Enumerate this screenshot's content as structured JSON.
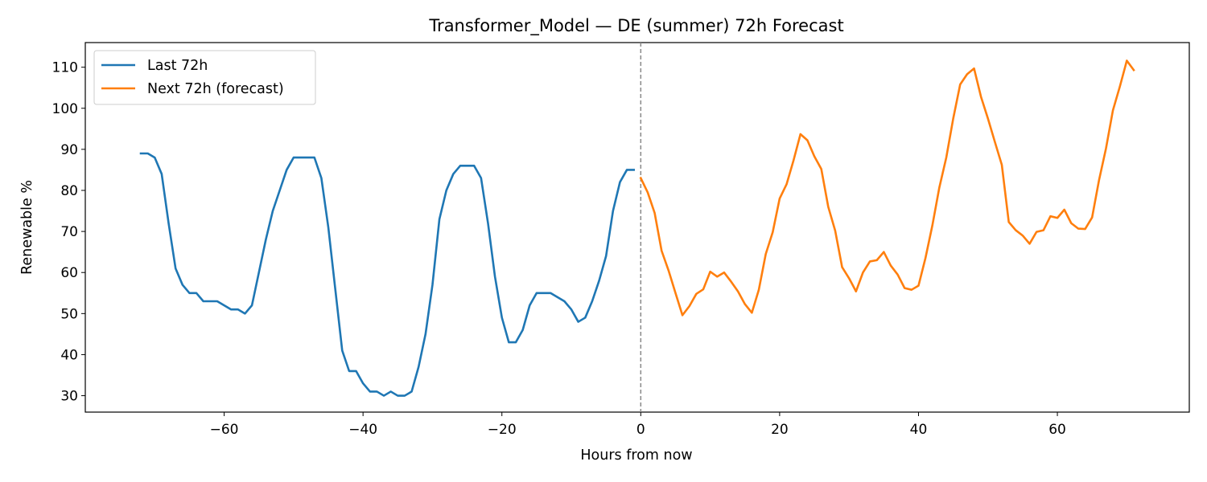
{
  "chart_data": {
    "type": "line",
    "title": "Transformer_Model — DE (summer) 72h Forecast",
    "xlabel": "Hours from now",
    "ylabel": "Renewable %",
    "xlim": [
      -80,
      79
    ],
    "ylim": [
      26,
      116
    ],
    "xticks": [
      -60,
      -40,
      -20,
      0,
      20,
      40,
      60
    ],
    "yticks": [
      30,
      40,
      50,
      60,
      70,
      80,
      90,
      100,
      110
    ],
    "x_tick_labels": [
      "−60",
      "−40",
      "−20",
      "0",
      "20",
      "40",
      "60"
    ],
    "y_tick_labels": [
      "30",
      "40",
      "50",
      "60",
      "70",
      "80",
      "90",
      "100",
      "110"
    ],
    "grid": false,
    "legend_position": "top-left",
    "reference_line": {
      "x": 0,
      "style": "dashed",
      "color": "#888888"
    },
    "series": [
      {
        "name": "Last 72h",
        "color": "#1f77b4",
        "x": [
          -72,
          -71,
          -70,
          -69,
          -68,
          -67,
          -66,
          -65,
          -64,
          -63,
          -62,
          -61,
          -60,
          -59,
          -58,
          -57,
          -56,
          -55,
          -54,
          -53,
          -52,
          -51,
          -50,
          -49,
          -48,
          -47,
          -46,
          -45,
          -44,
          -43,
          -42,
          -41,
          -40,
          -39,
          -38,
          -37,
          -36,
          -35,
          -34,
          -33,
          -32,
          -31,
          -30,
          -29,
          -28,
          -27,
          -26,
          -25,
          -24,
          -23,
          -22,
          -21,
          -20,
          -19,
          -18,
          -17,
          -16,
          -15,
          -14,
          -13,
          -12,
          -11,
          -10,
          -9,
          -8,
          -7,
          -6,
          -5,
          -4,
          -3,
          -2,
          -1
        ],
        "values": [
          89,
          89,
          88,
          84,
          72,
          61,
          57,
          55,
          55,
          53,
          53,
          53,
          52,
          51,
          51,
          50,
          52,
          60,
          68,
          75,
          80,
          85,
          88,
          88,
          88,
          88,
          83,
          71,
          56,
          41,
          36,
          36,
          33,
          31,
          31,
          30,
          31,
          30,
          30,
          31,
          37,
          45,
          57,
          73,
          80,
          84,
          86,
          86,
          86,
          83,
          72,
          59,
          49,
          43,
          43,
          46,
          52,
          55,
          55,
          55,
          54,
          53,
          51,
          48,
          49,
          53,
          58,
          64,
          75,
          82,
          85,
          85
        ]
      },
      {
        "name": "Next 72h (forecast)",
        "color": "#ff7f0e",
        "x": [
          0,
          1,
          2,
          3,
          4,
          5,
          6,
          7,
          8,
          9,
          10,
          11,
          12,
          13,
          14,
          15,
          16,
          17,
          18,
          19,
          20,
          21,
          22,
          23,
          24,
          25,
          26,
          27,
          28,
          29,
          30,
          31,
          32,
          33,
          34,
          35,
          36,
          37,
          38,
          39,
          40,
          41,
          42,
          43,
          44,
          45,
          46,
          47,
          48,
          49,
          50,
          51,
          52,
          53,
          54,
          55,
          56,
          57,
          58,
          59,
          60,
          61,
          62,
          63,
          64,
          65,
          66,
          67,
          68,
          69,
          70,
          71
        ],
        "values": [
          83,
          79.5,
          74.5,
          65.3,
          60.5,
          55,
          49.6,
          51.8,
          54.8,
          55.9,
          60.2,
          59,
          60,
          57.8,
          55.4,
          52.3,
          50.2,
          55.8,
          64.5,
          69.8,
          78,
          81.5,
          87.3,
          93.7,
          92.2,
          88.3,
          85.2,
          76,
          70.2,
          61.3,
          58.6,
          55.4,
          60,
          62.7,
          63,
          65,
          61.7,
          59.5,
          56.2,
          55.8,
          56.8,
          63.5,
          71.5,
          80.7,
          88,
          97.5,
          105.8,
          108.3,
          109.7,
          102.8,
          97.5,
          91.8,
          86.2,
          72.3,
          70.3,
          69,
          67,
          69.9,
          70.3,
          73.7,
          73.3,
          75.3,
          72,
          70.7,
          70.6,
          73.4,
          82.5,
          90.2,
          99.5,
          105.3,
          111.6,
          109.3
        ]
      }
    ]
  }
}
